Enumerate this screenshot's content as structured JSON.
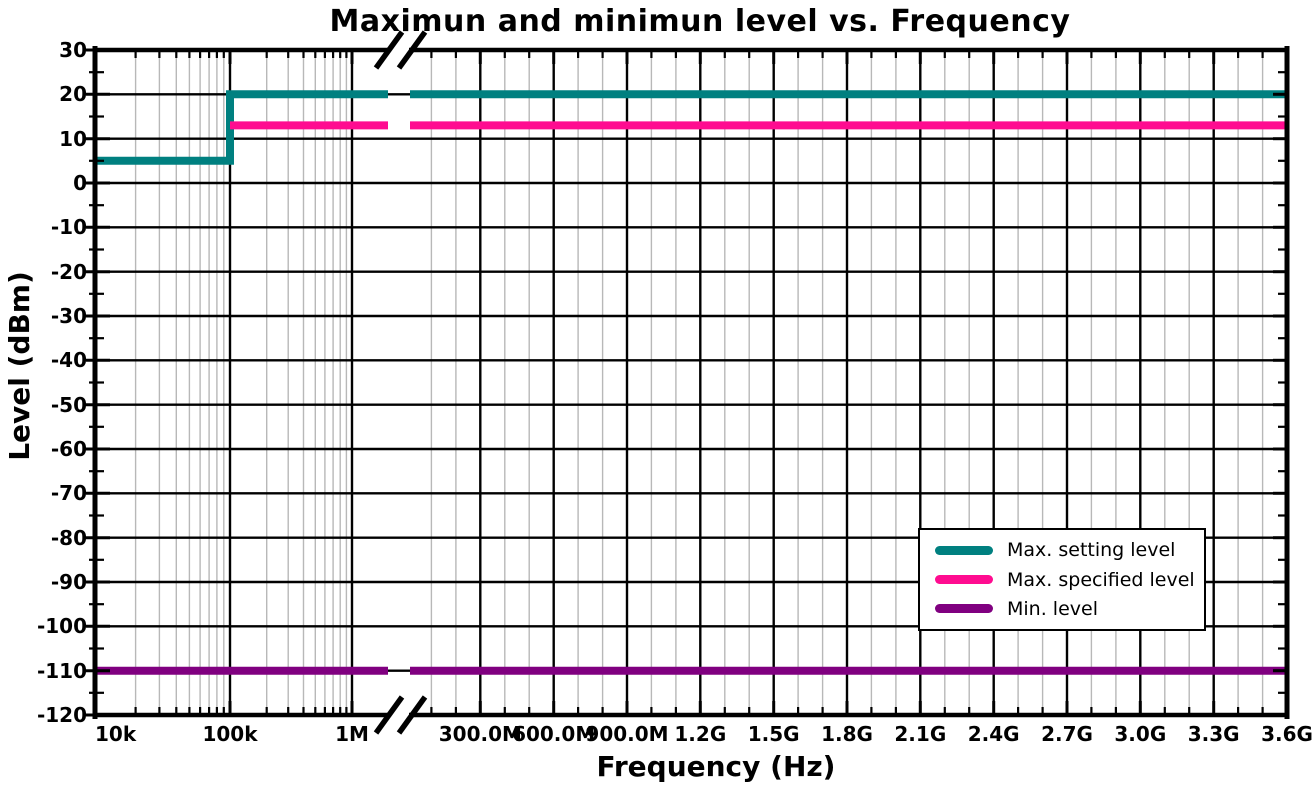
{
  "chart_data": {
    "type": "line",
    "title": "Maximun and minimun level vs. Frequency",
    "xlabel": "Frequency (Hz)",
    "ylabel": "Level (dBm)",
    "ylim": [
      -120,
      30
    ],
    "y_major_tick_step": 10,
    "y_minor_tick_step": 5,
    "grid": "major black, minor gray vertical only",
    "x_axis": {
      "type": "broken-axis",
      "left_scale": "log",
      "left_range_hz": [
        10000,
        1000000
      ],
      "right_scale": "linear",
      "right_range_hz": [
        0,
        3600000000
      ],
      "break_after_hz": 1000000,
      "linear_minor_step_hz": 100000000
    },
    "y_ticks": [
      30,
      20,
      10,
      0,
      -10,
      -20,
      -30,
      -40,
      -50,
      -60,
      -70,
      -80,
      -90,
      -100,
      -110,
      -120
    ],
    "x_ticks": [
      {
        "f": 10000,
        "label": "10k"
      },
      {
        "f": 100000,
        "label": "100k"
      },
      {
        "f": 1000000,
        "label": "1M"
      },
      {
        "f": 300000000,
        "label": "300.0M"
      },
      {
        "f": 600000000,
        "label": "600.0M"
      },
      {
        "f": 900000000,
        "label": "900.0M"
      },
      {
        "f": 1200000000,
        "label": "1.2G"
      },
      {
        "f": 1500000000,
        "label": "1.5G"
      },
      {
        "f": 1800000000,
        "label": "1.8G"
      },
      {
        "f": 2100000000,
        "label": "2.1G"
      },
      {
        "f": 2400000000,
        "label": "2.4G"
      },
      {
        "f": 2700000000,
        "label": "2.7G"
      },
      {
        "f": 3000000000,
        "label": "3.0G"
      },
      {
        "f": 3300000000,
        "label": "3.3G"
      },
      {
        "f": 3600000000,
        "label": "3.6G"
      }
    ],
    "series": [
      {
        "name": "Max. setting level",
        "color": "#008080",
        "points_hz_dbm": [
          [
            10000,
            5
          ],
          [
            100000,
            5
          ],
          [
            100000,
            20
          ],
          [
            3600000000,
            20
          ]
        ]
      },
      {
        "name": "Max. specified level",
        "color": "#ff0c90",
        "points_hz_dbm": [
          [
            100000,
            13
          ],
          [
            3600000000,
            13
          ]
        ]
      },
      {
        "name": "Min. level",
        "color": "#800080",
        "points_hz_dbm": [
          [
            10000,
            -110
          ],
          [
            3600000000,
            -110
          ]
        ]
      }
    ],
    "legend_position": "inside-right-lower"
  },
  "colors": {
    "axis": "#000000",
    "grid_major": "#000000",
    "grid_minor": "#b8b8b8",
    "background": "#ffffff",
    "text": "#000000"
  }
}
